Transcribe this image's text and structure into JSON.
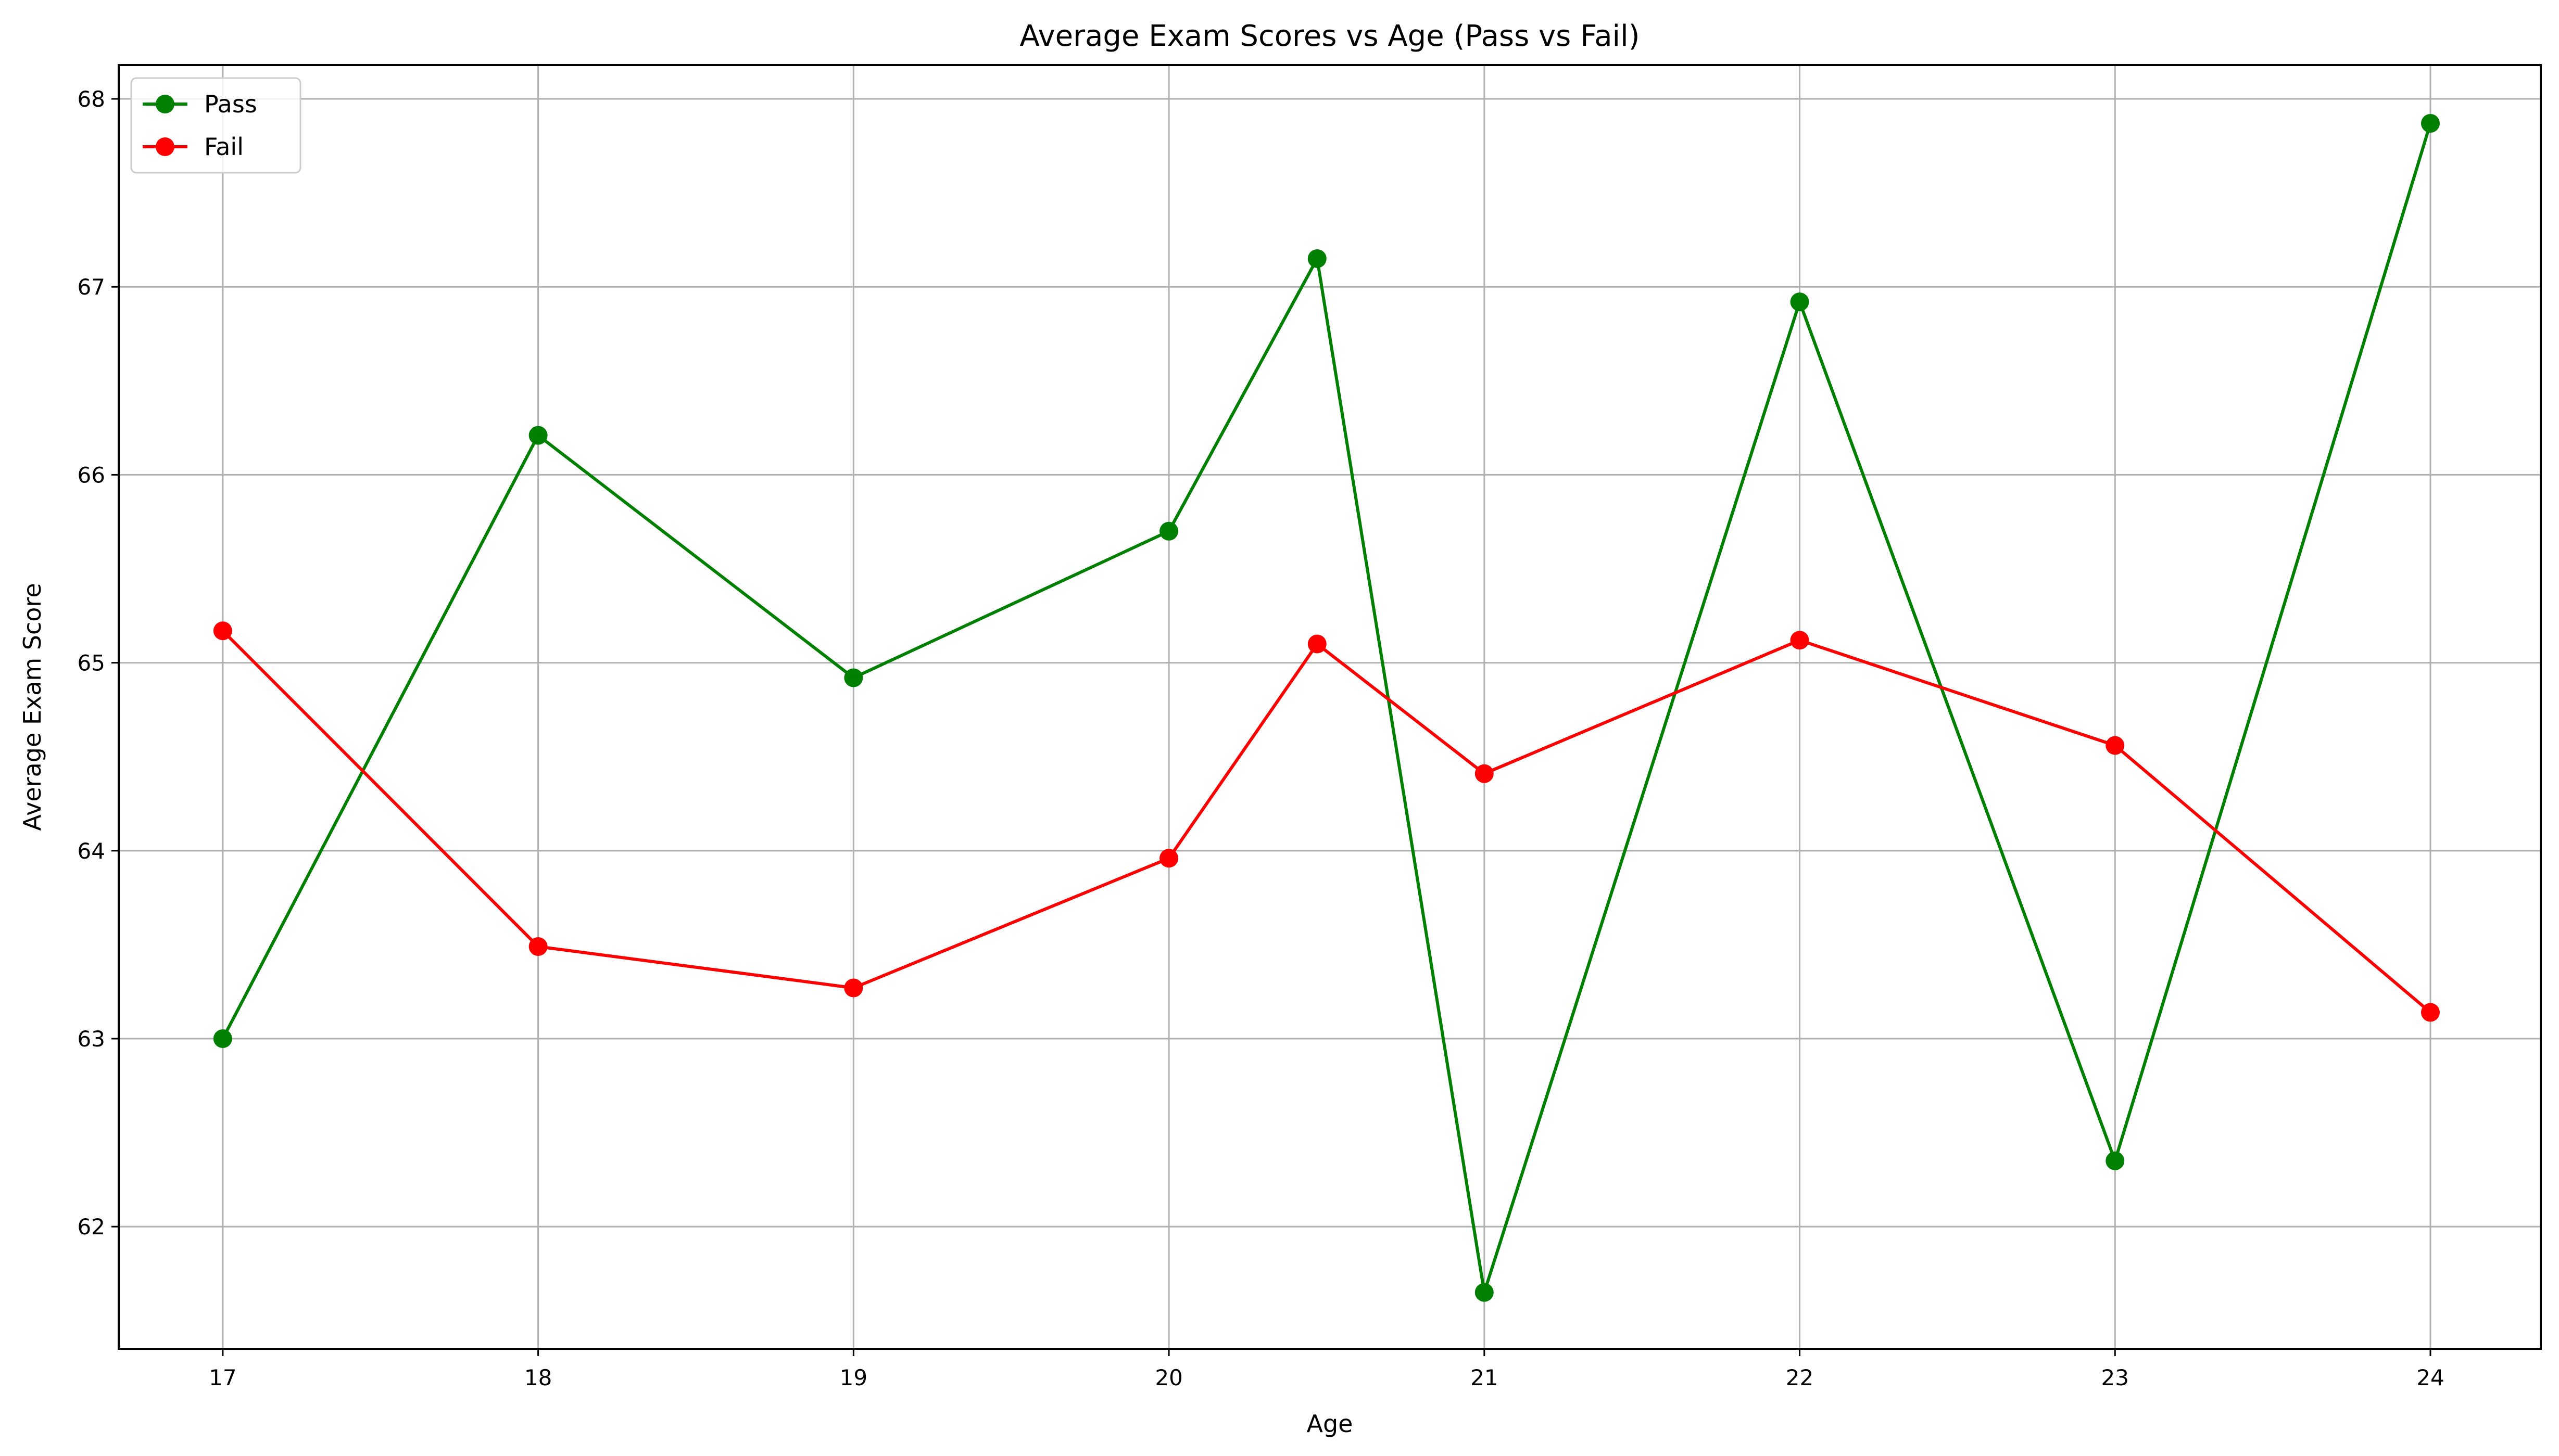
{
  "chart_data": {
    "type": "line",
    "title": "Average Exam Scores vs Age (Pass vs Fail)",
    "xlabel": "Age",
    "ylabel": "Average Exam Score",
    "xlim": [
      16.67,
      24.35
    ],
    "ylim": [
      61.35,
      68.18
    ],
    "xticks": [
      17,
      18,
      19,
      20,
      21,
      22,
      23,
      24
    ],
    "yticks": [
      62,
      63,
      64,
      65,
      66,
      67,
      68
    ],
    "grid": true,
    "legend_position": "top-left",
    "series": [
      {
        "name": "Pass",
        "color": "#008000",
        "x": [
          17,
          18,
          19,
          20,
          20.47,
          21,
          22,
          23,
          24
        ],
        "y": [
          63.0,
          66.21,
          64.92,
          65.7,
          67.15,
          61.65,
          66.92,
          62.35,
          67.87
        ]
      },
      {
        "name": "Fail",
        "color": "#ff0000",
        "x": [
          17,
          18,
          19,
          20,
          20.47,
          21,
          22,
          23,
          24
        ],
        "y": [
          65.17,
          63.49,
          63.27,
          63.96,
          65.1,
          64.41,
          65.12,
          64.56,
          63.14
        ]
      }
    ]
  }
}
